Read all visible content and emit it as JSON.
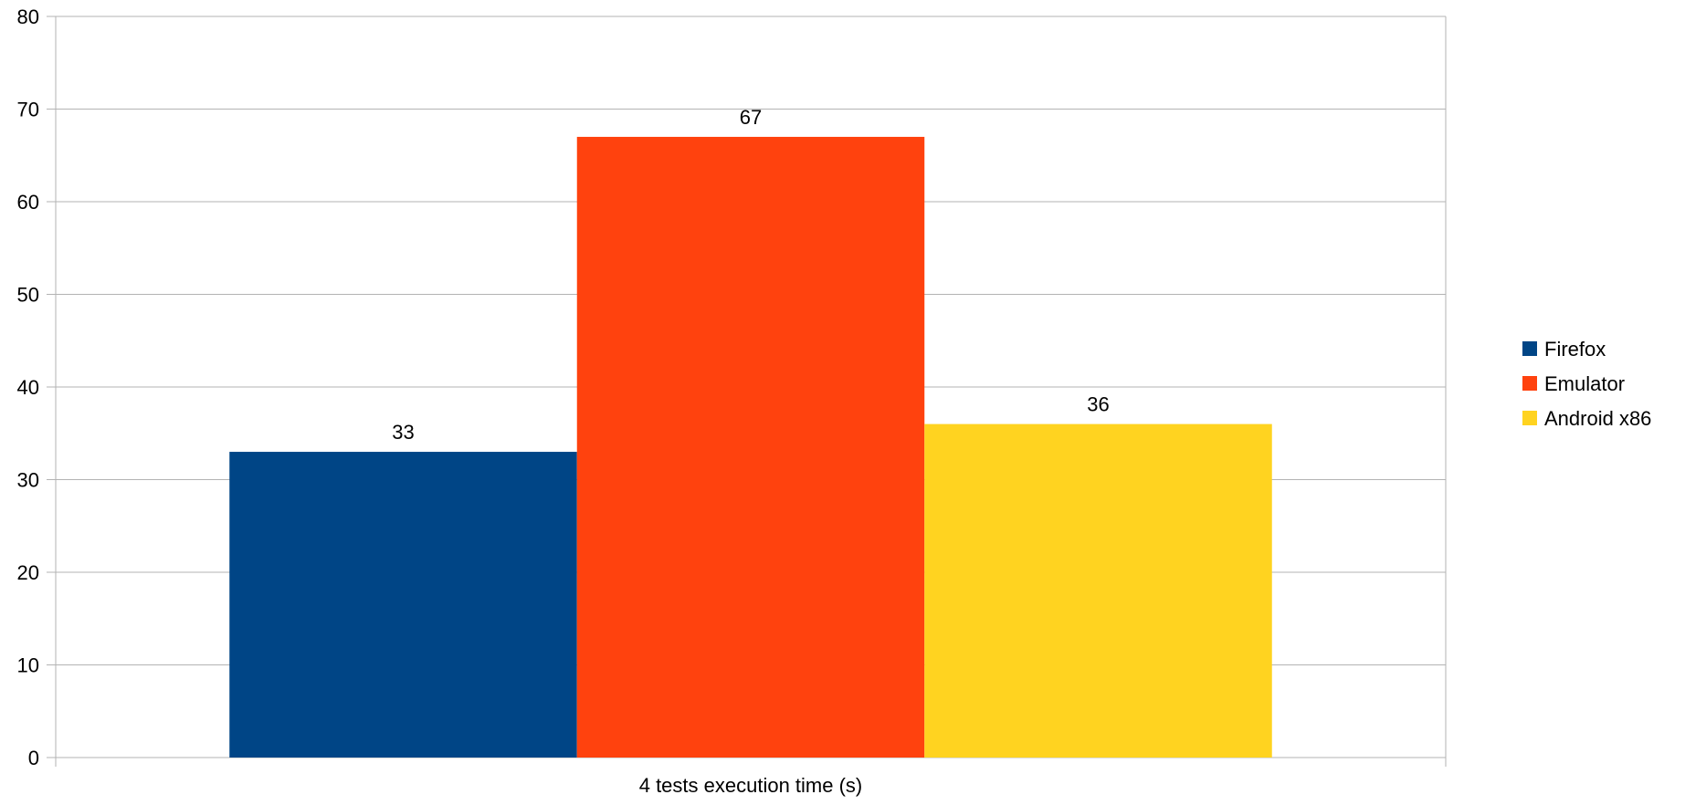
{
  "chart_data": {
    "type": "bar",
    "categories": [
      "4 tests execution time (s)"
    ],
    "series": [
      {
        "name": "Firefox",
        "values": [
          33
        ],
        "color": "#004586"
      },
      {
        "name": "Emulator",
        "values": [
          67
        ],
        "color": "#ff420e"
      },
      {
        "name": "Android x86",
        "values": [
          36
        ],
        "color": "#ffd320"
      }
    ],
    "ylim": [
      0,
      80
    ],
    "yticks": [
      0,
      10,
      20,
      30,
      40,
      50,
      60,
      70,
      80
    ],
    "xlabel": "",
    "ylabel": "",
    "title": "",
    "grid": true,
    "data_labels": true,
    "legend": "right"
  }
}
